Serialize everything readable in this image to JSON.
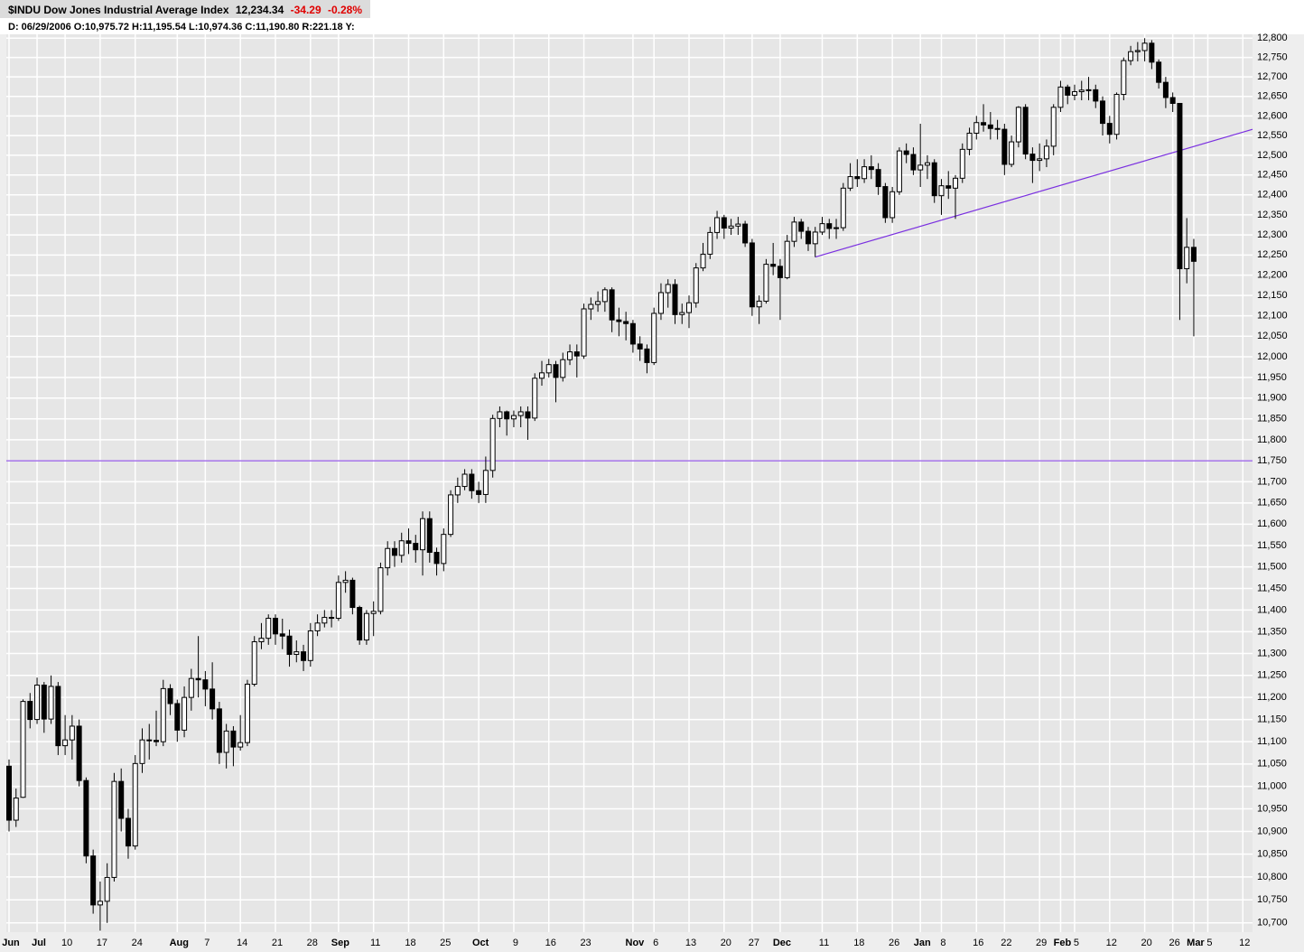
{
  "header": {
    "symbol": "$INDU",
    "name": "Dow Jones Industrial Average Index",
    "last": "12,234.34",
    "change": "-34.29",
    "change_pct": "-0.28%",
    "info": [
      "D: 06/29/2006",
      "O:10,975.72",
      "H:11,195.54",
      "L:10,974.36",
      "C:11,190.80",
      "R:221.18",
      "Y:"
    ]
  },
  "chart_data": {
    "type": "candlestick",
    "log_scale": true,
    "grid": true,
    "up_color": "#ffffff",
    "down_color": "#000000",
    "categories": [
      "Jun",
      null,
      null,
      null,
      "Jul",
      null,
      null,
      null,
      "10",
      null,
      null,
      null,
      null,
      "17",
      null,
      null,
      null,
      null,
      "24",
      null,
      null,
      null,
      null,
      null,
      "Aug",
      null,
      null,
      null,
      "7",
      null,
      null,
      null,
      null,
      "14",
      null,
      null,
      null,
      null,
      "21",
      null,
      null,
      null,
      null,
      "28",
      null,
      null,
      null,
      "Sep",
      null,
      null,
      null,
      null,
      "11",
      null,
      null,
      null,
      null,
      "18",
      null,
      null,
      null,
      null,
      "25",
      null,
      null,
      null,
      null,
      "Oct",
      null,
      null,
      null,
      null,
      "9",
      null,
      null,
      null,
      null,
      "16",
      null,
      null,
      null,
      null,
      "23",
      null,
      null,
      null,
      null,
      null,
      null,
      "Nov",
      null,
      null,
      "6",
      null,
      null,
      null,
      null,
      "13",
      null,
      null,
      null,
      null,
      "20",
      null,
      null,
      null,
      "27",
      null,
      null,
      null,
      "Dec",
      null,
      null,
      null,
      null,
      null,
      "11",
      null,
      null,
      null,
      null,
      "18",
      null,
      null,
      null,
      null,
      "26",
      null,
      null,
      null,
      "Jan",
      null,
      null,
      "8",
      null,
      null,
      null,
      null,
      "16",
      null,
      null,
      null,
      "22",
      null,
      null,
      null,
      null,
      "29",
      null,
      null,
      "Feb",
      null,
      "5",
      null,
      null,
      null,
      null,
      "12",
      null,
      null,
      null,
      null,
      "20",
      null,
      null,
      null,
      "26",
      null,
      null,
      "Mar",
      null,
      "5",
      null,
      null,
      null,
      null,
      "12"
    ],
    "open": [
      11045,
      10925,
      10975.72,
      11191,
      11150,
      11228,
      11151,
      11225,
      11091,
      11104,
      11135,
      11013,
      10846,
      10739,
      10747,
      10799,
      11011,
      10929,
      10868,
      11051,
      11104,
      11103,
      11100,
      11220,
      11186,
      11126,
      11200,
      11243,
      11240,
      11219,
      11174,
      11076,
      11124,
      11088,
      11098,
      11230,
      11327,
      11335,
      11381,
      11345,
      11340,
      11298,
      11304,
      11284,
      11352,
      11370,
      11383,
      11381,
      11464,
      11469,
      11406,
      11331,
      11392,
      11397,
      11498,
      11543,
      11527,
      11561,
      11555,
      11540,
      11613,
      11534,
      11508,
      11576,
      11669,
      11689,
      11718,
      11679,
      11670,
      11727,
      11851,
      11867,
      11850,
      11858,
      11867,
      11852,
      11948,
      11961,
      11981,
      11950,
      11993,
      12012,
      12002,
      12117,
      12128,
      12135,
      12164,
      12090,
      12086,
      12081,
      12031,
      12019,
      11986,
      12106,
      12157,
      12177,
      12103,
      12108,
      12132,
      12218,
      12252,
      12306,
      12343,
      12317,
      12322,
      12327,
      12280,
      12122,
      12136,
      12227,
      12222,
      12194,
      12284,
      12332,
      12309,
      12278,
      12307,
      12328,
      12316,
      12318,
      12417,
      12446,
      12441,
      12471,
      12464,
      12421,
      12343,
      12408,
      12511,
      12502,
      12463,
      12475,
      12481,
      12398,
      12423,
      12417,
      12442,
      12515,
      12556,
      12583,
      12577,
      12568,
      12566,
      12477,
      12534,
      12622,
      12503,
      12487,
      12491,
      12523,
      12622,
      12674,
      12653,
      12662,
      12666,
      12667,
      12638,
      12581,
      12553,
      12655,
      12742,
      12765,
      12768,
      12787,
      12738,
      12686,
      12647,
      12632,
      12216,
      12269,
      null,
      null,
      null,
      null,
      null,
      null,
      null
    ],
    "high": [
      11060,
      10995,
      11195.54,
      11210,
      11245,
      11235,
      11250,
      11235,
      11160,
      11160,
      11150,
      11020,
      10860,
      10790,
      10830,
      11030,
      11040,
      10950,
      11070,
      11130,
      11140,
      11170,
      11240,
      11230,
      11195,
      11225,
      11265,
      11340,
      11260,
      11280,
      11190,
      11140,
      11135,
      11160,
      11240,
      11340,
      11370,
      11390,
      11390,
      11380,
      11355,
      11330,
      11320,
      11370,
      11390,
      11400,
      11400,
      11480,
      11490,
      11475,
      11410,
      11400,
      11420,
      11510,
      11560,
      11560,
      11580,
      11590,
      11575,
      11630,
      11630,
      11545,
      11590,
      11680,
      11710,
      11730,
      11730,
      11700,
      11760,
      11860,
      11880,
      11870,
      11870,
      11880,
      11880,
      11960,
      11990,
      11995,
      11990,
      12010,
      12030,
      12030,
      12130,
      12145,
      12160,
      12170,
      12170,
      12120,
      12110,
      12090,
      12050,
      12030,
      12120,
      12180,
      12190,
      12190,
      12130,
      12150,
      12230,
      12280,
      12320,
      12360,
      12350,
      12340,
      12345,
      12335,
      12290,
      12150,
      12240,
      12280,
      12240,
      12300,
      12345,
      12340,
      12320,
      12320,
      12345,
      12340,
      12340,
      12430,
      12480,
      12490,
      12490,
      12500,
      12480,
      12430,
      12420,
      12520,
      12530,
      12520,
      12580,
      12500,
      12490,
      12440,
      12460,
      12450,
      12530,
      12570,
      12600,
      12630,
      12610,
      12590,
      12580,
      12550,
      12625,
      12630,
      12520,
      12530,
      12540,
      12630,
      12690,
      12680,
      12680,
      12690,
      12700,
      12680,
      12650,
      12600,
      12660,
      12750,
      12780,
      12790,
      12800,
      12795,
      12745,
      12700,
      12660,
      12632,
      12342,
      12290,
      null,
      null,
      null,
      null,
      null,
      null,
      null
    ],
    "low": [
      10900,
      10910,
      10974.36,
      11130,
      11140,
      11120,
      11140,
      11070,
      11070,
      11060,
      11000,
      10830,
      10720,
      10683,
      10700,
      10790,
      10900,
      10840,
      10860,
      11030,
      11060,
      11090,
      11090,
      11160,
      11100,
      11110,
      11170,
      11200,
      11180,
      11150,
      11050,
      11040,
      11045,
      11080,
      11090,
      11225,
      11310,
      11320,
      11320,
      11310,
      11270,
      11280,
      11260,
      11270,
      11340,
      11360,
      11360,
      11375,
      11440,
      11390,
      11320,
      11320,
      11340,
      11390,
      11480,
      11500,
      11510,
      11530,
      11510,
      11480,
      11510,
      11480,
      11490,
      11570,
      11650,
      11680,
      11660,
      11650,
      11650,
      11710,
      11830,
      11810,
      11830,
      11830,
      11800,
      11845,
      11930,
      11950,
      11890,
      11940,
      11980,
      11950,
      11995,
      12090,
      12110,
      12110,
      12060,
      12050,
      12040,
      12010,
      11990,
      11960,
      11980,
      12090,
      12120,
      12080,
      12080,
      12070,
      12120,
      12210,
      12240,
      12290,
      12290,
      12300,
      12300,
      12270,
      12100,
      12080,
      12130,
      12200,
      12090,
      12190,
      12270,
      12290,
      12260,
      12245,
      12300,
      12290,
      12290,
      12310,
      12410,
      12420,
      12430,
      12440,
      12400,
      12330,
      12330,
      12400,
      12480,
      12450,
      12420,
      12440,
      12380,
      12350,
      12390,
      12340,
      12430,
      12500,
      12540,
      12560,
      12540,
      12540,
      12450,
      12470,
      12520,
      12490,
      12430,
      12460,
      12470,
      12500,
      12610,
      12630,
      12640,
      12640,
      12640,
      12620,
      12550,
      12530,
      12540,
      12640,
      12730,
      12740,
      12740,
      12720,
      12670,
      12620,
      12610,
      12090,
      12180,
      12050,
      null,
      null,
      null,
      null,
      null,
      null,
      null
    ],
    "close": [
      10925,
      10974,
      11190.8,
      11150,
      11228,
      11151,
      11225,
      11091,
      11104,
      11135,
      11013,
      10846,
      10739,
      10747,
      10799,
      11011,
      10929,
      10868,
      11051,
      11104,
      11103,
      11100,
      11220,
      11186,
      11126,
      11200,
      11243,
      11240,
      11219,
      11174,
      11076,
      11124,
      11088,
      11098,
      11230,
      11327,
      11335,
      11381,
      11345,
      11340,
      11298,
      11304,
      11284,
      11352,
      11370,
      11383,
      11381,
      11464,
      11469,
      11406,
      11331,
      11392,
      11397,
      11498,
      11543,
      11527,
      11561,
      11555,
      11540,
      11613,
      11534,
      11508,
      11576,
      11669,
      11689,
      11718,
      11679,
      11670,
      11727,
      11851,
      11867,
      11850,
      11858,
      11867,
      11852,
      11948,
      11961,
      11981,
      11950,
      11993,
      12012,
      12002,
      12117,
      12128,
      12135,
      12164,
      12090,
      12086,
      12081,
      12031,
      12019,
      11986,
      12106,
      12157,
      12177,
      12103,
      12108,
      12132,
      12218,
      12252,
      12306,
      12343,
      12317,
      12322,
      12327,
      12280,
      12122,
      12136,
      12227,
      12222,
      12194,
      12284,
      12332,
      12309,
      12278,
      12307,
      12328,
      12316,
      12318,
      12417,
      12446,
      12441,
      12471,
      12464,
      12421,
      12343,
      12408,
      12511,
      12502,
      12463,
      12475,
      12481,
      12398,
      12423,
      12417,
      12442,
      12515,
      12556,
      12583,
      12577,
      12568,
      12566,
      12477,
      12534,
      12622,
      12503,
      12487,
      12491,
      12523,
      12622,
      12674,
      12653,
      12662,
      12666,
      12667,
      12638,
      12581,
      12553,
      12655,
      12742,
      12765,
      12768,
      12787,
      12738,
      12686,
      12647,
      12632,
      12216,
      12269,
      12234.34,
      null,
      null,
      null,
      null,
      null,
      null,
      null
    ],
    "ylim": [
      10680,
      12810
    ],
    "yticks": [
      {
        "value": 10700,
        "label": "10,700"
      },
      {
        "value": 10750,
        "label": "10,750"
      },
      {
        "value": 10800,
        "label": "10,800"
      },
      {
        "value": 10850,
        "label": "10,850"
      },
      {
        "value": 10900,
        "label": "10,900"
      },
      {
        "value": 10950,
        "label": "10,950"
      },
      {
        "value": 11000,
        "label": "11,000"
      },
      {
        "value": 11050,
        "label": "11,050"
      },
      {
        "value": 11100,
        "label": "11,100"
      },
      {
        "value": 11150,
        "label": "11,150"
      },
      {
        "value": 11200,
        "label": "11,200"
      },
      {
        "value": 11250,
        "label": "11,250"
      },
      {
        "value": 11300,
        "label": "11,300"
      },
      {
        "value": 11350,
        "label": "11,350"
      },
      {
        "value": 11400,
        "label": "11,400"
      },
      {
        "value": 11450,
        "label": "11,450"
      },
      {
        "value": 11500,
        "label": "11,500"
      },
      {
        "value": 11550,
        "label": "11,550"
      },
      {
        "value": 11600,
        "label": "11,600"
      },
      {
        "value": 11650,
        "label": "11,650"
      },
      {
        "value": 11700,
        "label": "11,700"
      },
      {
        "value": 11750,
        "label": "11,750"
      },
      {
        "value": 11800,
        "label": "11,800"
      },
      {
        "value": 11850,
        "label": "11,850"
      },
      {
        "value": 11900,
        "label": "11,900"
      },
      {
        "value": 11950,
        "label": "11,950"
      },
      {
        "value": 12000,
        "label": "12,000"
      },
      {
        "value": 12050,
        "label": "12,050"
      },
      {
        "value": 12100,
        "label": "12,100"
      },
      {
        "value": 12150,
        "label": "12,150"
      },
      {
        "value": 12200,
        "label": "12,200"
      },
      {
        "value": 12250,
        "label": "12,250"
      },
      {
        "value": 12300,
        "label": "12,300"
      },
      {
        "value": 12350,
        "label": "12,350"
      },
      {
        "value": 12400,
        "label": "12,400"
      },
      {
        "value": 12450,
        "label": "12,450"
      },
      {
        "value": 12500,
        "label": "12,500"
      },
      {
        "value": 12550,
        "label": "12,550"
      },
      {
        "value": 12600,
        "label": "12,600"
      },
      {
        "value": 12650,
        "label": "12,650"
      },
      {
        "value": 12700,
        "label": "12,700"
      },
      {
        "value": 12750,
        "label": "12,750"
      },
      {
        "value": 12800,
        "label": "12,800"
      }
    ],
    "annotations": {
      "color": "#7a2fe0",
      "horizontal": 11750,
      "trendline": {
        "index": [
          115,
          168
        ],
        "values": [
          12245,
          12517
        ]
      }
    }
  }
}
